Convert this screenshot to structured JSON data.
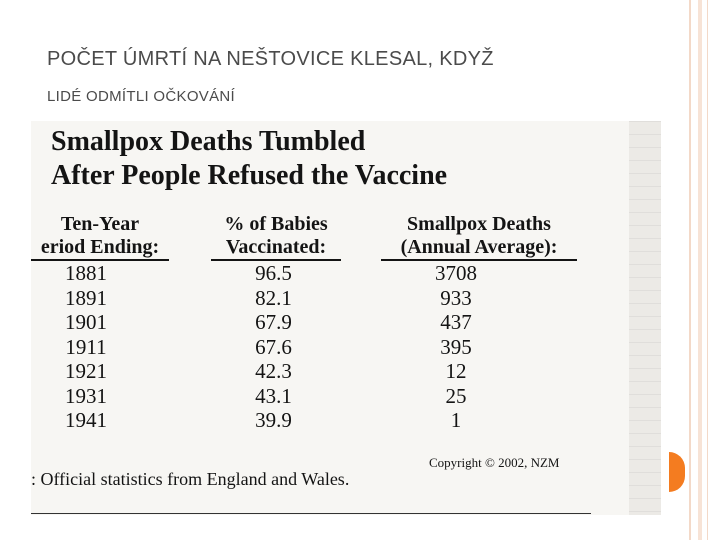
{
  "slide": {
    "title_line1": "Počet úmrtí na neštovice klesal, když",
    "title_line2": "lidé odmítli očkování",
    "accent_color": "#f47c20"
  },
  "document": {
    "title_line1": "Smallpox Deaths Tumbled",
    "title_line2": "After People Refused the Vaccine",
    "columns": [
      {
        "line1": "Ten-Year",
        "line2": "eriod Ending:"
      },
      {
        "line1": "% of Babies",
        "line2": "Vaccinated:"
      },
      {
        "line1": "Smallpox Deaths",
        "line2": "(Annual Average):"
      }
    ],
    "rows": [
      {
        "year": "1881",
        "pct": "96.5",
        "deaths": "3708"
      },
      {
        "year": "1891",
        "pct": "82.1",
        "deaths": "933"
      },
      {
        "year": "1901",
        "pct": "67.9",
        "deaths": "437"
      },
      {
        "year": "1911",
        "pct": "67.6",
        "deaths": "395"
      },
      {
        "year": "1921",
        "pct": "42.3",
        "deaths": "12"
      },
      {
        "year": "1931",
        "pct": "43.1",
        "deaths": "25"
      },
      {
        "year": "1941",
        "pct": "39.9",
        "deaths": "1"
      }
    ],
    "copyright": "Copyright © 2002, NZM",
    "source": ": Official statistics from England and Wales."
  }
}
